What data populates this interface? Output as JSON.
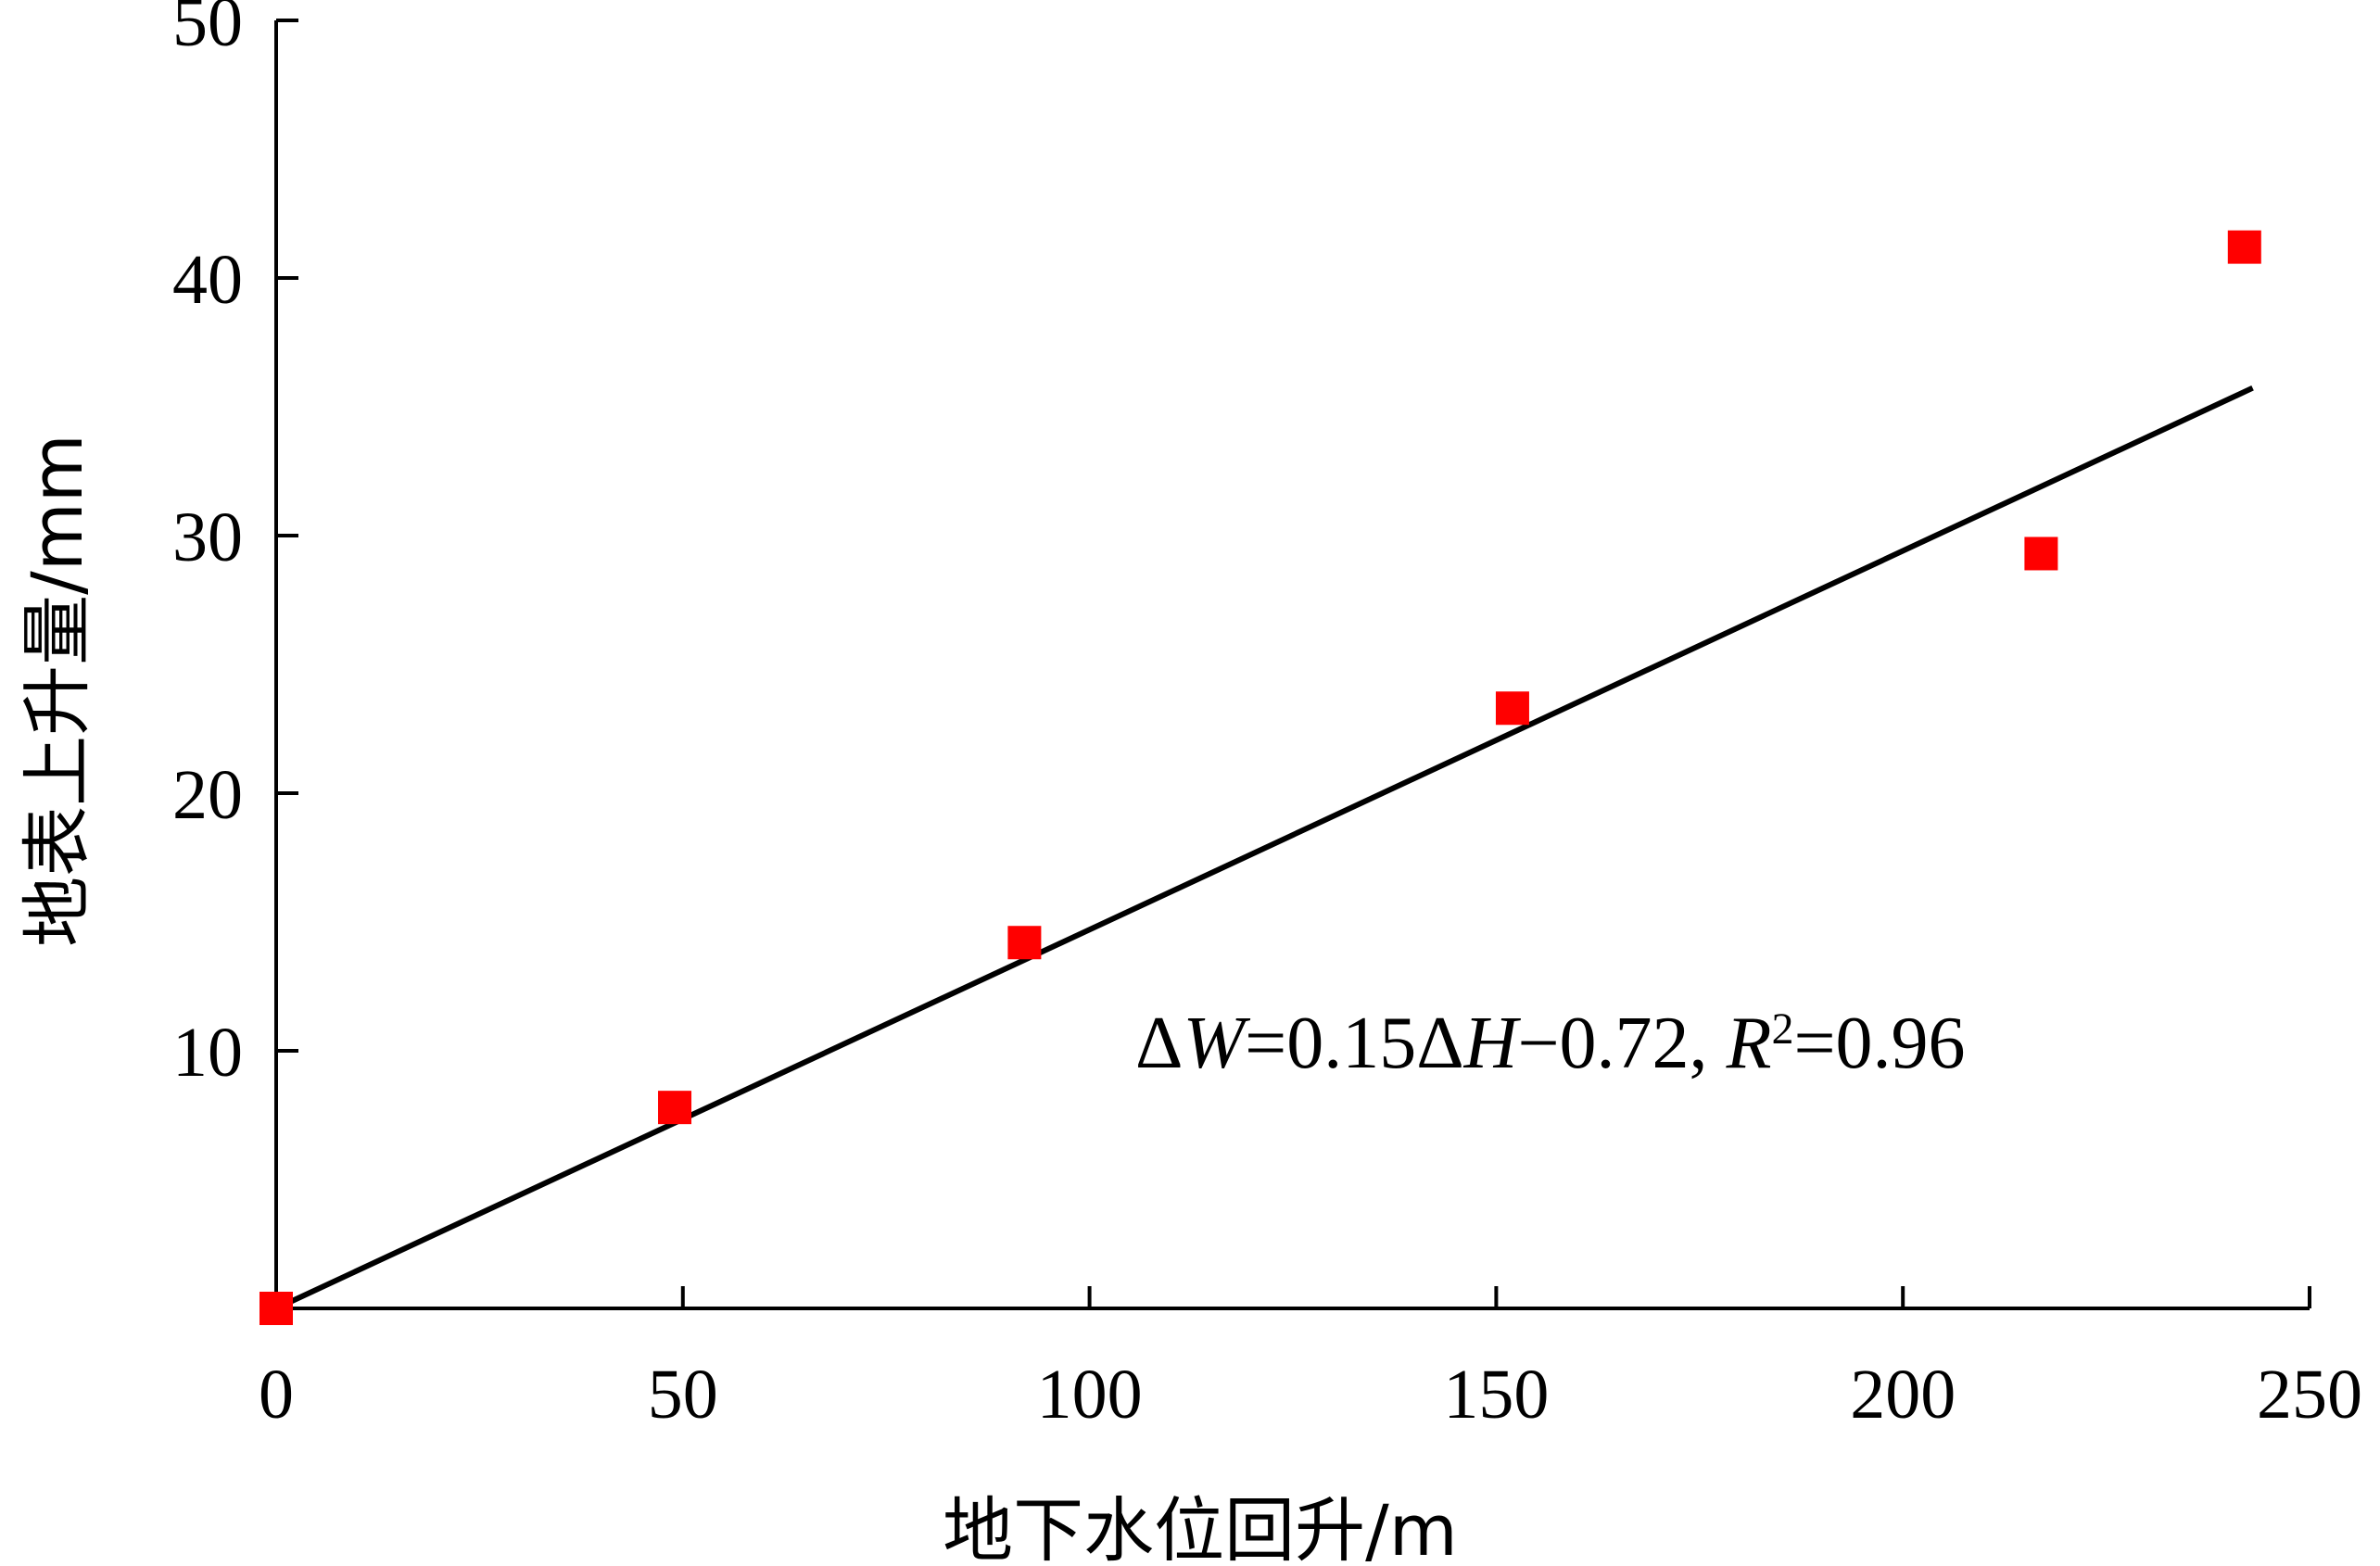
{
  "chart_data": {
    "type": "scatter",
    "title": "",
    "xlabel": "地下水位回升/m",
    "ylabel": "地表上升量/mm",
    "xlim": [
      0,
      250
    ],
    "ylim": [
      0,
      50
    ],
    "x_ticks": [
      "0",
      "50",
      "100",
      "150",
      "200",
      "250"
    ],
    "y_ticks": [
      "10",
      "20",
      "30",
      "40",
      "50"
    ],
    "grid": false,
    "legend": "none",
    "points": [
      {
        "x": 0,
        "y": 0
      },
      {
        "x": 49,
        "y": 7.8
      },
      {
        "x": 92,
        "y": 14.2
      },
      {
        "x": 152,
        "y": 23.3
      },
      {
        "x": 217,
        "y": 29.3
      },
      {
        "x": 242,
        "y": 41.2
      }
    ],
    "fit_line": {
      "x_range": [
        0,
        243
      ],
      "slope": 0.15,
      "intercept": -0.72
    },
    "annotation": {
      "delta1": "Δ",
      "var1": "W",
      "mid1": "=0.15Δ",
      "var2": "H",
      "mid2": "−0.72, ",
      "var3": "R",
      "sup": "2",
      "tail": "=0.96"
    },
    "colors": {
      "marker": "#ff0000",
      "line": "#000000",
      "axis": "#000000"
    }
  }
}
